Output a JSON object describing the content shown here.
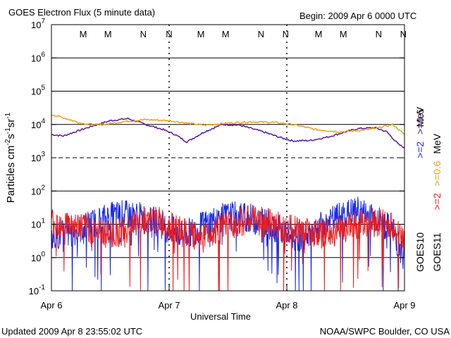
{
  "header": {
    "title": "GOES Electron Flux (5 minute data)",
    "begin": "Begin: 2009 Apr 6 0000 UTC"
  },
  "footer": {
    "updated": "Updated 2009 Apr  8 23:55:02 UTC",
    "credit": "NOAA/SWPC Boulder, CO USA"
  },
  "colors": {
    "goes10_2mev": "#5a1a9c",
    "goes11_2mev": "#e8a020",
    "goes10_06mev": "#1a2be6",
    "goes11_06mev": "#ee1c1c",
    "midnight_M": "#1a2be6",
    "midnight_N_blue": "#1a2be6",
    "midnight_N_red": "#ee1c1c"
  },
  "chart_data": {
    "type": "line",
    "title": "GOES Electron Flux (5 minute data)",
    "xlabel": "Universal Time",
    "ylabel": "Particles cm^-2 s^-1 sr^-1",
    "y_scale": "log",
    "ylim": [
      0.1,
      10000000
    ],
    "xlim": [
      0,
      3
    ],
    "x_unit": "days since 2009 Apr 6 0000 UTC",
    "x_tick_labels": [
      "Apr 6",
      "Apr 7",
      "Apr 8",
      "Apr 9"
    ],
    "y_tick_labels": [
      {
        "base": "10",
        "exp": "-1"
      },
      {
        "base": "10",
        "exp": "0"
      },
      {
        "base": "10",
        "exp": "1"
      },
      {
        "base": "10",
        "exp": "2"
      },
      {
        "base": "10",
        "exp": "3"
      },
      {
        "base": "10",
        "exp": "4"
      },
      {
        "base": "10",
        "exp": "5"
      },
      {
        "base": "10",
        "exp": "6"
      },
      {
        "base": "10",
        "exp": "7"
      }
    ],
    "grid": true,
    "midnight_markers": [
      {
        "label": "M",
        "x": 0.27,
        "color": "blue"
      },
      {
        "label": "M",
        "x": 0.48,
        "color": "red"
      },
      {
        "label": "N",
        "x": 0.78,
        "color": "blue"
      },
      {
        "label": "N",
        "x": 1.0,
        "color": "red"
      },
      {
        "label": "M",
        "x": 1.27,
        "color": "blue"
      },
      {
        "label": "M",
        "x": 1.48,
        "color": "red"
      },
      {
        "label": "N",
        "x": 1.78,
        "color": "blue"
      },
      {
        "label": "N",
        "x": 1.99,
        "color": "red"
      },
      {
        "label": "M",
        "x": 2.27,
        "color": "blue"
      },
      {
        "label": "M",
        "x": 2.48,
        "color": "red"
      },
      {
        "label": "N",
        "x": 2.78,
        "color": "blue"
      },
      {
        "label": "N",
        "x": 2.99,
        "color": "red"
      }
    ],
    "legend": {
      "placement": "right",
      "energy_2": ">=2",
      "energy_06": ">=0.6",
      "unit": "MeV",
      "sat_10": "GOES10",
      "sat_11": "GOES11"
    },
    "series": [
      {
        "name": "GOES10 >=2 MeV",
        "color": "purple",
        "x": [
          0.0,
          0.1,
          0.2,
          0.35,
          0.5,
          0.65,
          0.8,
          0.95,
          1.05,
          1.15,
          1.3,
          1.45,
          1.6,
          1.8,
          1.95,
          2.05,
          2.2,
          2.35,
          2.5,
          2.6,
          2.75,
          2.85,
          2.95,
          3.0
        ],
        "y": [
          5000,
          4500,
          6000,
          9000,
          13000,
          15000,
          10000,
          7000,
          5000,
          3000,
          6000,
          10000,
          9500,
          6000,
          4000,
          3200,
          3300,
          4200,
          6000,
          7500,
          8000,
          6000,
          2500,
          2000
        ]
      },
      {
        "name": "GOES11 >=2 MeV",
        "color": "orange",
        "x": [
          0.0,
          0.1,
          0.25,
          0.4,
          0.6,
          0.8,
          1.0,
          1.15,
          1.3,
          1.5,
          1.7,
          1.9,
          2.05,
          2.25,
          2.45,
          2.6,
          2.75,
          2.9,
          3.0
        ],
        "y": [
          20000,
          16000,
          11000,
          9500,
          12000,
          14000,
          13000,
          11000,
          9500,
          11000,
          12000,
          11500,
          10000,
          7000,
          6000,
          6500,
          7500,
          10000,
          5000
        ]
      },
      {
        "name": "GOES10 >=0.6 MeV",
        "color": "blue",
        "x": [
          0.0,
          0.1,
          0.2,
          0.3,
          0.4,
          0.5,
          0.6,
          0.7,
          0.8,
          0.9,
          1.0,
          1.1,
          1.2,
          1.3,
          1.4,
          1.5,
          1.6,
          1.7,
          1.8,
          1.9,
          2.0,
          2.1,
          2.2,
          2.3,
          2.4,
          2.5,
          2.6,
          2.7,
          2.8,
          2.9,
          3.0
        ],
        "y": [
          4,
          5,
          6,
          9,
          13,
          17,
          20,
          18,
          16,
          12,
          7,
          5,
          6,
          10,
          14,
          17,
          18,
          15,
          12,
          8,
          5,
          4,
          6,
          9,
          14,
          20,
          25,
          18,
          12,
          6,
          1
        ]
      },
      {
        "name": "GOES11 >=0.6 MeV",
        "color": "red",
        "x": [
          0.0,
          0.1,
          0.2,
          0.3,
          0.4,
          0.5,
          0.6,
          0.7,
          0.8,
          0.9,
          1.0,
          1.1,
          1.2,
          1.3,
          1.4,
          1.5,
          1.6,
          1.7,
          1.8,
          1.9,
          2.0,
          2.1,
          2.2,
          2.3,
          2.4,
          2.5,
          2.6,
          2.7,
          2.8,
          2.9,
          3.0
        ],
        "y": [
          12,
          11,
          9,
          8,
          6,
          5,
          6,
          10,
          14,
          13,
          9,
          6,
          4,
          5,
          7,
          9,
          12,
          14,
          12,
          10,
          8,
          7,
          6,
          5,
          6,
          8,
          10,
          12,
          11,
          8,
          3
        ]
      }
    ]
  }
}
